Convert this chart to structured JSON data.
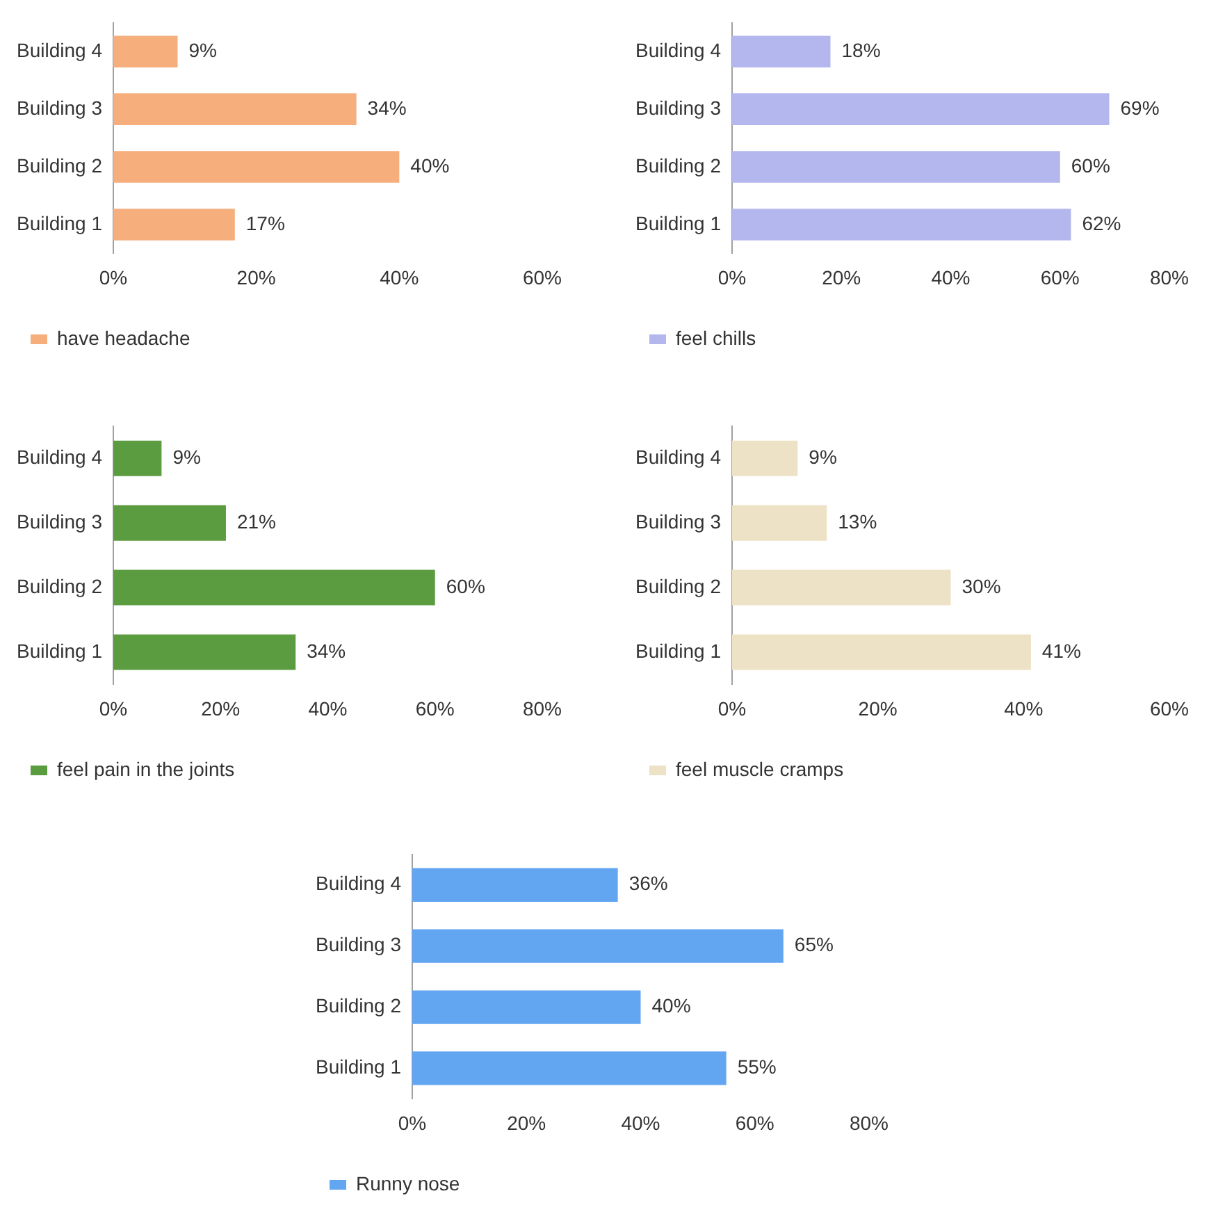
{
  "chart_data": [
    {
      "type": "bar",
      "orientation": "horizontal",
      "categories": [
        "Building 4",
        "Building 3",
        "Building 2",
        "Building 1"
      ],
      "series": [
        {
          "name": "have headache",
          "color": "#f5ae7c",
          "values": [
            9,
            34,
            40,
            17
          ],
          "value_labels": [
            "9%",
            "34%",
            "40%",
            "17%"
          ]
        }
      ],
      "xlim": [
        0,
        60
      ],
      "xticks": [
        {
          "value": 0,
          "label": "0%"
        },
        {
          "value": 20,
          "label": "20%"
        },
        {
          "value": 40,
          "label": "40%"
        },
        {
          "value": 60,
          "label": "60%"
        }
      ],
      "grid": false,
      "legend": "bottom left"
    },
    {
      "type": "bar",
      "orientation": "horizontal",
      "categories": [
        "Building 4",
        "Building 3",
        "Building 2",
        "Building 1"
      ],
      "series": [
        {
          "name": "feel chills",
          "color": "#b4b6ee",
          "values": [
            18,
            69,
            60,
            62
          ],
          "value_labels": [
            "18%",
            "69%",
            "60%",
            "62%"
          ]
        }
      ],
      "xlim": [
        0,
        80
      ],
      "xticks": [
        {
          "value": 0,
          "label": "0%"
        },
        {
          "value": 20,
          "label": "20%"
        },
        {
          "value": 40,
          "label": "40%"
        },
        {
          "value": 60,
          "label": "60%"
        },
        {
          "value": 80,
          "label": "80%"
        }
      ],
      "grid": false,
      "legend": "bottom left"
    },
    {
      "type": "bar",
      "orientation": "horizontal",
      "categories": [
        "Building 4",
        "Building 3",
        "Building 2",
        "Building 1"
      ],
      "series": [
        {
          "name": "feel pain in the joints",
          "color": "#5c9c40",
          "values": [
            9,
            21,
            60,
            34
          ],
          "value_labels": [
            "9%",
            "21%",
            "60%",
            "34%"
          ]
        }
      ],
      "xlim": [
        0,
        80
      ],
      "xticks": [
        {
          "value": 0,
          "label": "0%"
        },
        {
          "value": 20,
          "label": "20%"
        },
        {
          "value": 40,
          "label": "40%"
        },
        {
          "value": 60,
          "label": "60%"
        },
        {
          "value": 80,
          "label": "80%"
        }
      ],
      "grid": false,
      "legend": "bottom left"
    },
    {
      "type": "bar",
      "orientation": "horizontal",
      "categories": [
        "Building 4",
        "Building 3",
        "Building 2",
        "Building 1"
      ],
      "series": [
        {
          "name": "feel muscle cramps",
          "color": "#eee2c6",
          "values": [
            9,
            13,
            30,
            41
          ],
          "value_labels": [
            "9%",
            "13%",
            "30%",
            "41%"
          ]
        }
      ],
      "xlim": [
        0,
        60
      ],
      "xticks": [
        {
          "value": 0,
          "label": "0%"
        },
        {
          "value": 20,
          "label": "20%"
        },
        {
          "value": 40,
          "label": "40%"
        },
        {
          "value": 60,
          "label": "60%"
        }
      ],
      "grid": false,
      "legend": "bottom left"
    },
    {
      "type": "bar",
      "orientation": "horizontal",
      "categories": [
        "Building 4",
        "Building 3",
        "Building 2",
        "Building 1"
      ],
      "series": [
        {
          "name": "Runny nose",
          "color": "#62a6f2",
          "values": [
            36,
            65,
            40,
            55
          ],
          "value_labels": [
            "36%",
            "65%",
            "40%",
            "55%"
          ]
        }
      ],
      "xlim": [
        0,
        80
      ],
      "xticks": [
        {
          "value": 0,
          "label": "0%"
        },
        {
          "value": 20,
          "label": "20%"
        },
        {
          "value": 40,
          "label": "40%"
        },
        {
          "value": 60,
          "label": "60%"
        },
        {
          "value": 80,
          "label": "80%"
        }
      ],
      "grid": false,
      "legend": "bottom left"
    }
  ]
}
